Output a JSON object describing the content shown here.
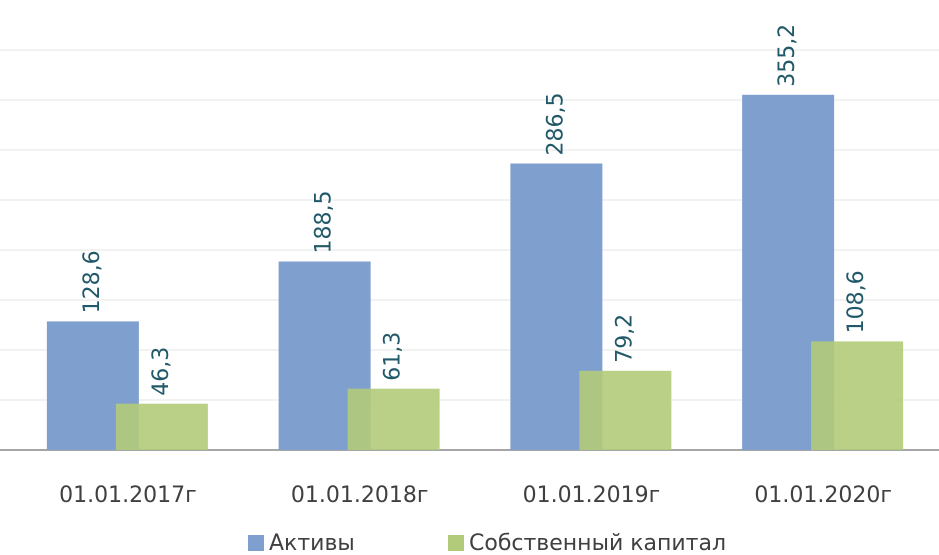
{
  "chart_data": {
    "type": "bar",
    "categories": [
      "01.01.2017г",
      "01.01.2018г",
      "01.01.2019г",
      "01.01.2020г"
    ],
    "series": [
      {
        "name": "Активы",
        "color": "#7f9fcf",
        "values": [
          128.6,
          188.5,
          286.5,
          355.2
        ],
        "value_labels": [
          "128,6",
          "188,5",
          "286,5",
          "355,2"
        ]
      },
      {
        "name": "Собственный капитал",
        "color": "#b2cb7a",
        "values": [
          46.3,
          61.3,
          79.2,
          108.6
        ],
        "value_labels": [
          "46,3",
          "61,3",
          "79,2",
          "108,6"
        ]
      }
    ],
    "ylim": [
      0,
      450
    ],
    "yticks": [
      0,
      50,
      100,
      150,
      200,
      250,
      300,
      350,
      400
    ],
    "grid": true
  }
}
